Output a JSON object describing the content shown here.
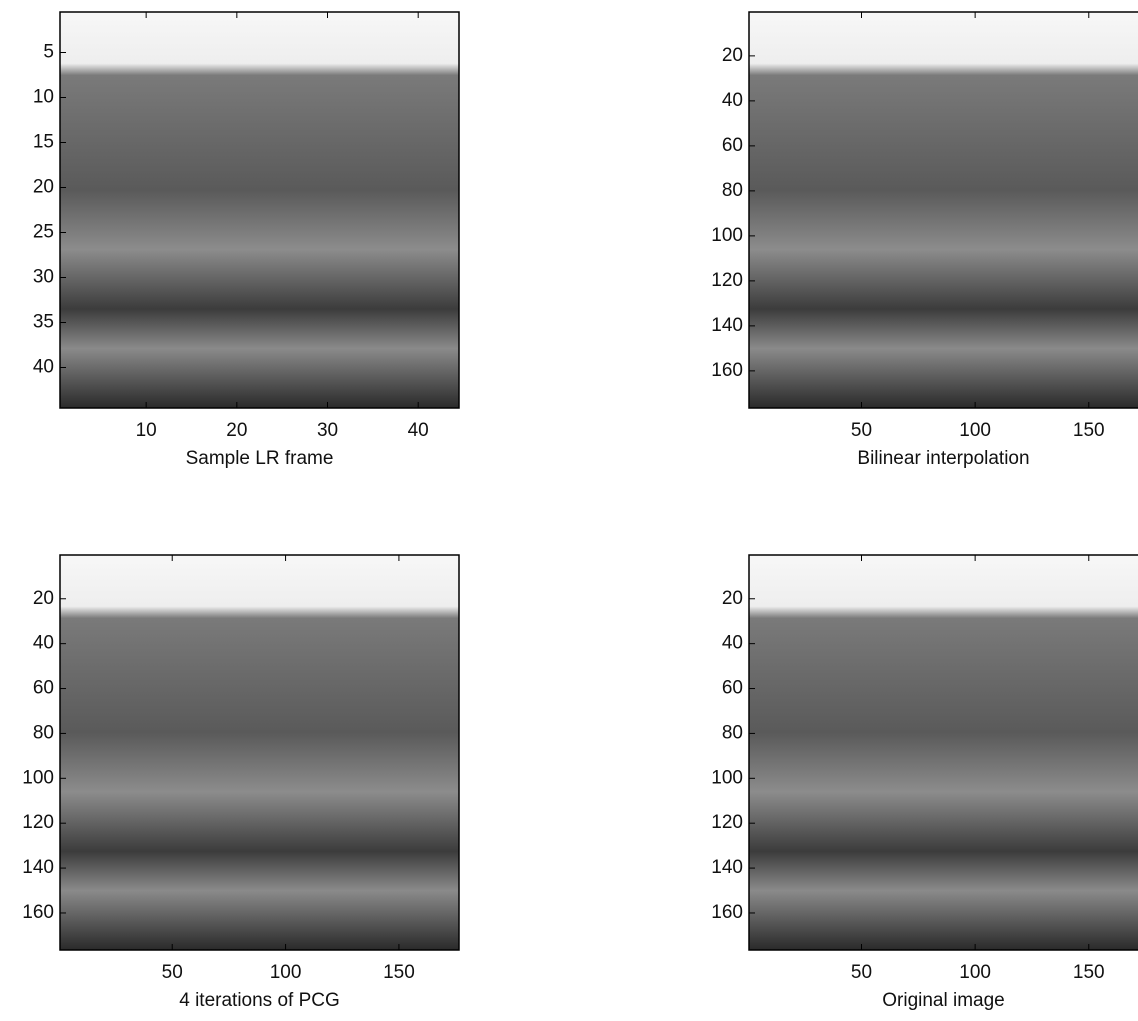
{
  "chart_data": [
    {
      "type": "image",
      "xlabel": "Sample LR frame",
      "xlim": [
        0.5,
        44.5
      ],
      "ylim": [
        0.5,
        44.5
      ],
      "y_reversed": true,
      "xticks": [
        10,
        20,
        30,
        40
      ],
      "yticks": [
        5,
        10,
        15,
        20,
        25,
        30,
        35,
        40
      ]
    },
    {
      "type": "image",
      "xlabel": "Bilinear interpolation",
      "xlim": [
        0.5,
        176.5
      ],
      "ylim": [
        0.5,
        176.5
      ],
      "y_reversed": true,
      "xticks": [
        50,
        100,
        150
      ],
      "yticks": [
        20,
        40,
        60,
        80,
        100,
        120,
        140,
        160
      ]
    },
    {
      "type": "image",
      "xlabel": "4 iterations of PCG",
      "xlim": [
        0.5,
        176.5
      ],
      "ylim": [
        0.5,
        176.5
      ],
      "y_reversed": true,
      "xticks": [
        50,
        100,
        150
      ],
      "yticks": [
        20,
        40,
        60,
        80,
        100,
        120,
        140,
        160
      ]
    },
    {
      "type": "image",
      "xlabel": "Original image",
      "xlim": [
        0.5,
        176.5
      ],
      "ylim": [
        0.5,
        176.5
      ],
      "y_reversed": true,
      "xticks": [
        50,
        100,
        150
      ],
      "yticks": [
        20,
        40,
        60,
        80,
        100,
        120,
        140,
        160
      ]
    }
  ]
}
